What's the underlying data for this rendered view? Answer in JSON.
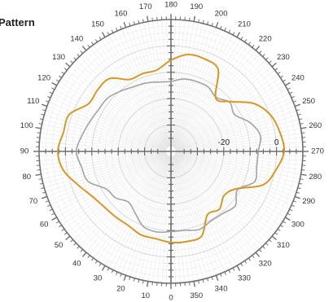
{
  "chart_data": {
    "type": "polar-line",
    "title": "Pattern",
    "angle_direction": "counter-clockwise",
    "zero_angle_at": "bottom",
    "angle_ticks": [
      0,
      10,
      20,
      30,
      40,
      50,
      60,
      70,
      80,
      90,
      100,
      110,
      120,
      130,
      140,
      150,
      160,
      170,
      180,
      190,
      200,
      210,
      220,
      230,
      240,
      250,
      260,
      270,
      280,
      290,
      300,
      310,
      320,
      330,
      340,
      350
    ],
    "radial_range": [
      -40,
      10
    ],
    "radial_tick_labels": [
      {
        "value": -20,
        "label": "-20"
      },
      {
        "value": 0,
        "label": "0"
      }
    ],
    "grid": true,
    "series": [
      {
        "color": "#d4982a",
        "angles": [
          0,
          10,
          20,
          30,
          40,
          50,
          60,
          70,
          80,
          90,
          100,
          110,
          120,
          130,
          140,
          150,
          160,
          170,
          180,
          190,
          200,
          210,
          220,
          230,
          240,
          250,
          260,
          270,
          280,
          290,
          300,
          310,
          320,
          330,
          340,
          350
        ],
        "values": [
          -5.5,
          -6.4,
          -6.4,
          -7.6,
          -7.5,
          -7.1,
          -5.7,
          -2.6,
          1.4,
          2.9,
          1.4,
          1.0,
          -3.9,
          -3.7,
          -3.9,
          -8.5,
          -8.6,
          -8.7,
          -5.4,
          -2.7,
          -2.7,
          -4.2,
          -13.6,
          -10.6,
          -3.7,
          0.2,
          1.9,
          2.9,
          0.4,
          -2.9,
          -11.6,
          -13.8,
          -11.4,
          -12.3,
          -5.9,
          -5.3
        ]
      },
      {
        "color": "#a3a3a3",
        "angles": [
          0,
          10,
          20,
          30,
          40,
          50,
          60,
          70,
          80,
          90,
          100,
          110,
          120,
          130,
          140,
          150,
          160,
          170,
          180,
          190,
          200,
          210,
          220,
          230,
          240,
          250,
          260,
          270,
          280,
          290,
          300,
          310,
          320,
          330,
          340,
          350
        ],
        "values": [
          -9.6,
          -9.0,
          -9.6,
          -12.9,
          -14.9,
          -12.6,
          -11.6,
          -6.6,
          -5.6,
          -4.1,
          -5.7,
          -7.2,
          -8.3,
          -8.6,
          -10.2,
          -11.7,
          -12.4,
          -13.3,
          -13.5,
          -12.1,
          -11.8,
          -11.8,
          -13.3,
          -11.0,
          -12.1,
          -8.1,
          -5.6,
          -6.9,
          -7.0,
          -6.3,
          -10.9,
          -8.1,
          -9.3,
          -9.6,
          -8.5,
          -9.6
        ]
      }
    ]
  }
}
